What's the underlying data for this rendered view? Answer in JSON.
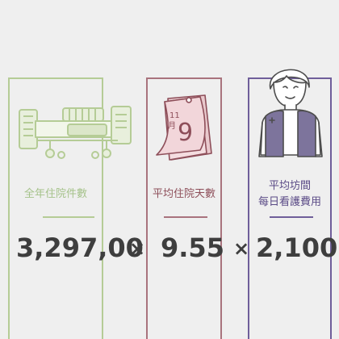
{
  "items": [
    {
      "label": "全年住院件數",
      "value": "3,297,00",
      "color": "#b5cc96",
      "label_color": "#a5c28a",
      "icon": "hospital-bed-icon"
    },
    {
      "label": "平均住院天數",
      "value": "9.55",
      "color": "#a9737d",
      "label_color": "#8e4f5a",
      "icon": "calendar-icon",
      "calendar_month": "11",
      "calendar_month_unit": "月",
      "calendar_day": "9"
    },
    {
      "label_line1": "平均坊間",
      "label_line2": "每日看護費用",
      "value": "2,100",
      "color": "#6f5e9a",
      "label_color": "#5a4a86",
      "icon": "caregiver-icon"
    }
  ],
  "operators": [
    "×",
    "×"
  ]
}
